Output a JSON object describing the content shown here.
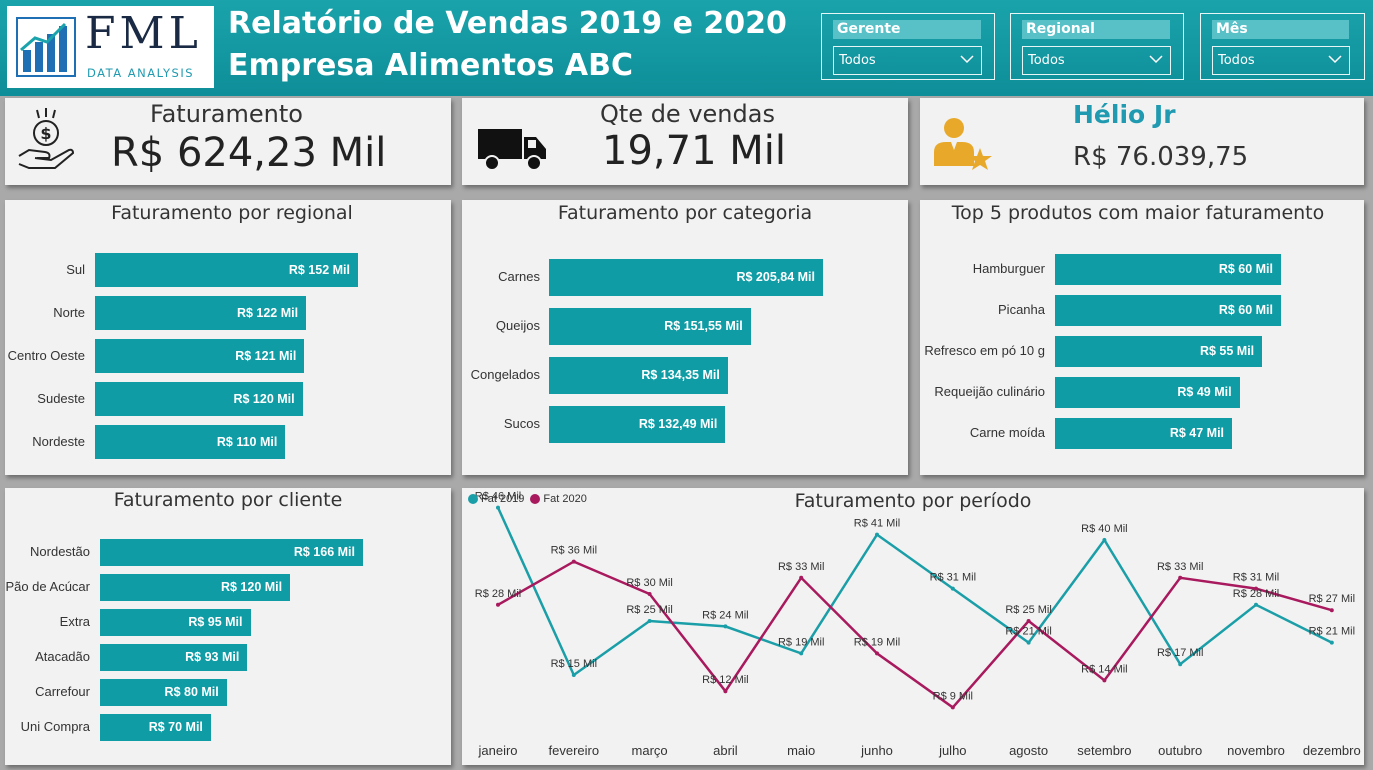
{
  "header": {
    "logo_name": "FML",
    "logo_sub": "DATA ANALYSIS",
    "title_line1": "Relatório de Vendas 2019 e 2020",
    "title_line2": "Empresa Alimentos ABC"
  },
  "filters": [
    {
      "label": "Gerente",
      "value": "Todos"
    },
    {
      "label": "Regional",
      "value": "Todos"
    },
    {
      "label": "Mês",
      "value": "Todos"
    }
  ],
  "kpis": {
    "faturamento": {
      "label": "Faturamento",
      "value": "R$ 624,23 Mil",
      "icon": "money-hand-icon"
    },
    "vendas": {
      "label": "Qte de vendas",
      "value": "19,71 Mil",
      "icon": "truck-icon"
    },
    "gerente": {
      "name": "Hélio Jr",
      "value": "R$ 76.039,75",
      "icon": "manager-star-icon"
    }
  },
  "colors": {
    "header": "#1aa3ab",
    "bar": "#0f9ca5",
    "fat2019": "#1a9ea7",
    "fat2020": "#a8195e",
    "manager": "#1f9ab0",
    "icon_gold": "#e8a92a"
  },
  "chart_data": [
    {
      "type": "bar",
      "orientation": "horizontal",
      "title": "Faturamento por regional",
      "categories": [
        "Sul",
        "Norte",
        "Centro Oeste",
        "Sudeste",
        "Nordeste"
      ],
      "values": [
        152,
        122,
        121,
        120,
        110
      ],
      "labels": [
        "R$ 152 Mil",
        "R$ 122 Mil",
        "R$ 121 Mil",
        "R$ 120 Mil",
        "R$ 110 Mil"
      ]
    },
    {
      "type": "bar",
      "orientation": "horizontal",
      "title": "Faturamento por categoria",
      "categories": [
        "Carnes",
        "Queijos",
        "Congelados",
        "Sucos"
      ],
      "values": [
        205.84,
        151.55,
        134.35,
        132.49
      ],
      "labels": [
        "R$ 205,84 Mil",
        "R$ 151,55 Mil",
        "R$ 134,35 Mil",
        "R$ 132,49 Mil"
      ]
    },
    {
      "type": "bar",
      "orientation": "horizontal",
      "title": "Top 5 produtos com maior faturamento",
      "categories": [
        "Hamburguer",
        "Picanha",
        "Refresco em pó 10 g",
        "Requeijão culinário",
        "Carne moída"
      ],
      "values": [
        60,
        60,
        55,
        49,
        47
      ],
      "labels": [
        "R$ 60 Mil",
        "R$ 60 Mil",
        "R$ 55 Mil",
        "R$ 49 Mil",
        "R$ 47 Mil"
      ]
    },
    {
      "type": "bar",
      "orientation": "horizontal",
      "title": "Faturamento por cliente",
      "categories": [
        "Nordestão",
        "Pão de Acúcar",
        "Extra",
        "Atacadão",
        "Carrefour",
        "Uni Compra"
      ],
      "values": [
        166,
        120,
        95,
        93,
        80,
        70
      ],
      "labels": [
        "R$ 166 Mil",
        "R$ 120 Mil",
        "R$ 95 Mil",
        "R$ 93 Mil",
        "R$ 80 Mil",
        "R$ 70 Mil"
      ]
    },
    {
      "type": "line",
      "title": "Faturamento por período",
      "categories": [
        "janeiro",
        "fevereiro",
        "março",
        "abril",
        "maio",
        "junho",
        "julho",
        "agosto",
        "setembro",
        "outubro",
        "novembro",
        "dezembro"
      ],
      "series": [
        {
          "name": "Fat 2019",
          "values": [
            46,
            15,
            25,
            24,
            19,
            41,
            31,
            21,
            40,
            17,
            28,
            21
          ],
          "labels": [
            "R$ 46 Mil",
            "R$ 15 Mil",
            "R$ 25 Mil",
            "R$ 24 Mil",
            "R$ 19 Mil",
            "R$ 41 Mil",
            "R$ 31 Mil",
            "R$ 21 Mil",
            "R$ 40 Mil",
            "R$ 17 Mil",
            "R$ 28 Mil",
            "R$ 21 Mil"
          ]
        },
        {
          "name": "Fat 2020",
          "values": [
            28,
            36,
            30,
            12,
            33,
            19,
            9,
            25,
            14,
            33,
            31,
            27
          ],
          "labels": [
            "R$ 28 Mil",
            "R$ 36 Mil",
            "R$ 30 Mil",
            "R$ 12 Mil",
            "R$ 33 Mil",
            "R$ 19 Mil",
            "R$ 9 Mil",
            "R$ 25 Mil",
            "R$ 14 Mil",
            "R$ 33 Mil",
            "R$ 31 Mil",
            "R$ 27 Mil"
          ]
        }
      ],
      "legend": "top-left"
    }
  ]
}
